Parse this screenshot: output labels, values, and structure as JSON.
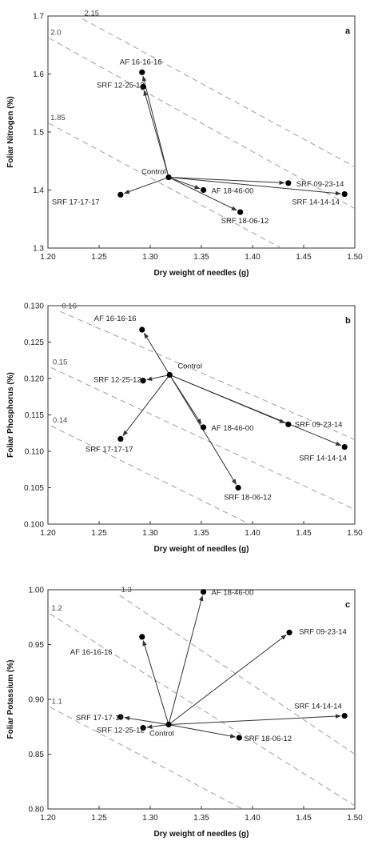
{
  "chart_data": [
    {
      "type": "scatter",
      "panel_label": "a",
      "xlabel": "Dry weight of needles (g)",
      "ylabel": "Foliar Nitrogen (%)",
      "xlim": [
        1.2,
        1.5
      ],
      "ylim": [
        1.3,
        1.7
      ],
      "xticks": [
        "1.20",
        "1.25",
        "1.30",
        "1.35",
        "1.40",
        "1.45",
        "1.50"
      ],
      "yticks": [
        "1.3",
        "1.4",
        "1.5",
        "1.6",
        "1.7"
      ],
      "control": {
        "label": "Control",
        "x": 1.318,
        "y": 1.422
      },
      "points": [
        {
          "label": "AF 16-16-16",
          "x": 1.292,
          "y": 1.603
        },
        {
          "label": "SRF 12-25-12",
          "x": 1.293,
          "y": 1.578
        },
        {
          "label": "AF 18-46-00",
          "x": 1.352,
          "y": 1.4
        },
        {
          "label": "SRF 09-23-14",
          "x": 1.435,
          "y": 1.412
        },
        {
          "label": "SRF 14-14-14",
          "x": 1.49,
          "y": 1.393
        },
        {
          "label": "SRF 17-17-17",
          "x": 1.271,
          "y": 1.392
        },
        {
          "label": "SRF 18-06-12",
          "x": 1.388,
          "y": 1.362
        }
      ],
      "isolines": [
        {
          "label": "2.15",
          "a": [
            1.234,
            1.695
          ],
          "b": [
            1.5,
            1.44
          ]
        },
        {
          "label": "2.0",
          "a": [
            1.201,
            1.662
          ],
          "b": [
            1.5,
            1.368
          ]
        },
        {
          "label": "1.85",
          "a": [
            1.201,
            1.515
          ],
          "b": [
            1.428,
            1.3
          ]
        }
      ]
    },
    {
      "type": "scatter",
      "panel_label": "b",
      "xlabel": "Dry weight of needles (g)",
      "ylabel": "Foliar Phosphorus (%)",
      "xlim": [
        1.2,
        1.5
      ],
      "ylim": [
        0.1,
        0.13
      ],
      "xticks": [
        "1.20",
        "1.25",
        "1.30",
        "1.35",
        "1.40",
        "1.45",
        "1.50"
      ],
      "yticks": [
        "0.100",
        "0.105",
        "0.110",
        "0.115",
        "0.120",
        "0.125",
        "0.130"
      ],
      "control": {
        "label": "Control",
        "x": 1.319,
        "y": 0.1205
      },
      "points": [
        {
          "label": "AF 16-16-16",
          "x": 1.292,
          "y": 0.1267
        },
        {
          "label": "SRF 12-25-12",
          "x": 1.293,
          "y": 0.1197
        },
        {
          "label": "SRF 17-17-17",
          "x": 1.271,
          "y": 0.1117
        },
        {
          "label": "AF 18-46-00",
          "x": 1.352,
          "y": 0.1133
        },
        {
          "label": "SRF 18-06-12",
          "x": 1.386,
          "y": 0.105
        },
        {
          "label": "SRF 09-23-14",
          "x": 1.435,
          "y": 0.1137
        },
        {
          "label": "SRF 14-14-14",
          "x": 1.49,
          "y": 0.1106
        }
      ],
      "isolines": [
        {
          "label": "0.16",
          "a": [
            1.212,
            0.1292
          ],
          "b": [
            1.5,
            0.1116
          ]
        },
        {
          "label": "0.15",
          "a": [
            1.203,
            0.1215
          ],
          "b": [
            1.5,
            0.102
          ]
        },
        {
          "label": "0.14",
          "a": [
            1.203,
            0.1135
          ],
          "b": [
            1.397,
            0.1
          ]
        }
      ]
    },
    {
      "type": "scatter",
      "panel_label": "c",
      "xlabel": "Dry weight of needles (g)",
      "ylabel": "Foliar Potassium (%)",
      "xlim": [
        1.2,
        1.5
      ],
      "ylim": [
        0.8,
        1.0
      ],
      "xticks": [
        "1.20",
        "1.25",
        "1.30",
        "1.35",
        "1.40",
        "1.45",
        "1.50"
      ],
      "yticks": [
        "0.80",
        "0.85",
        "0.90",
        "0.95",
        "1.00"
      ],
      "control": {
        "label": "Control",
        "x": 1.318,
        "y": 0.877
      },
      "points": [
        {
          "label": "AF 18-46-00",
          "x": 1.352,
          "y": 0.998
        },
        {
          "label": "SRF 09-23-14",
          "x": 1.436,
          "y": 0.961
        },
        {
          "label": "AF 16-16-16",
          "x": 1.292,
          "y": 0.957
        },
        {
          "label": "SRF 14-14-14",
          "x": 1.49,
          "y": 0.885
        },
        {
          "label": "SRF 17-17-17",
          "x": 1.271,
          "y": 0.884
        },
        {
          "label": "SRF 12-25-12",
          "x": 1.293,
          "y": 0.874
        },
        {
          "label": "SRF 18-06-12",
          "x": 1.387,
          "y": 0.865
        }
      ],
      "isolines": [
        {
          "label": "1.3",
          "a": [
            1.27,
            0.995
          ],
          "b": [
            1.5,
            0.85
          ]
        },
        {
          "label": "1.2",
          "a": [
            1.202,
            0.978
          ],
          "b": [
            1.5,
            0.803
          ]
        },
        {
          "label": "1.1",
          "a": [
            1.202,
            0.893
          ],
          "b": [
            1.39,
            0.8
          ]
        }
      ]
    }
  ]
}
